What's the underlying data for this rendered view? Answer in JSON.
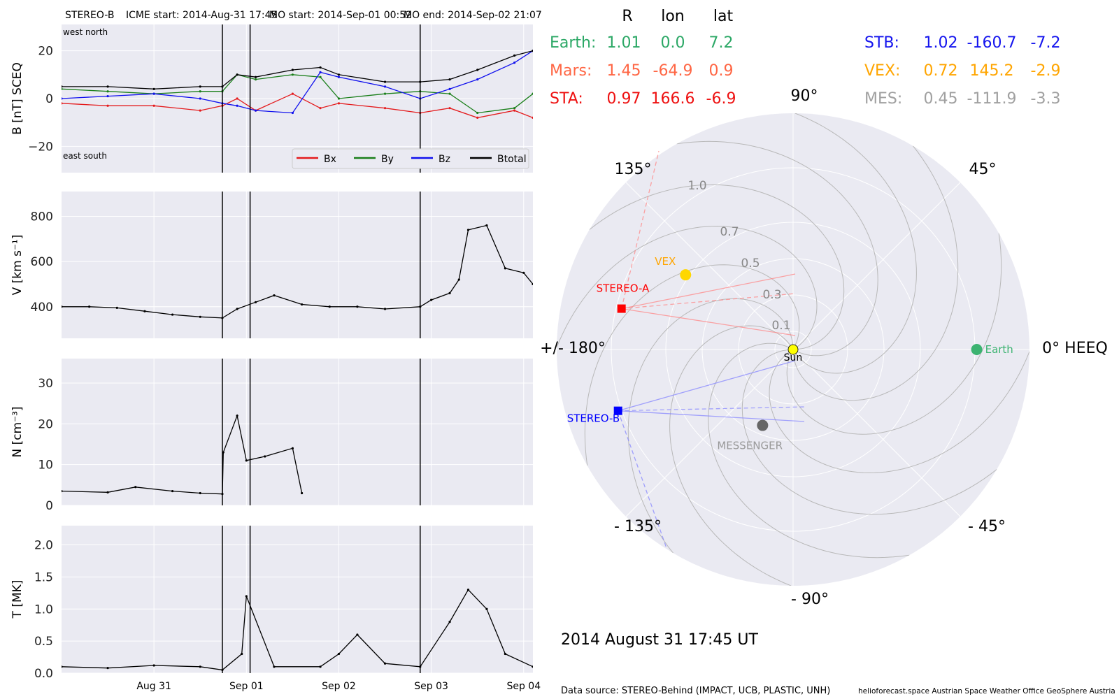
{
  "header": {
    "spacecraft": "STEREO-B",
    "icme_start": "ICME start: 2014-Aug-31 17:45",
    "mo_start": "MO start: 2014-Sep-01 00:52",
    "mo_end": "MO end: 2014-Sep-02 21:07"
  },
  "insitu": {
    "x_ticks": [
      "Aug 31",
      "Sep 01",
      "Sep 02",
      "Sep 03",
      "Sep 04"
    ],
    "x_range_days": [
      30.0,
      35.1
    ],
    "event_lines_days": [
      31.74,
      32.04,
      33.88
    ],
    "panels": [
      {
        "id": "B",
        "ylabel": "B [nT] SCEQ",
        "yticks": [
          "20",
          "0",
          "−20"
        ],
        "ylim": [
          -31,
          31
        ],
        "corner_labels": [
          "west    north",
          "east    south"
        ],
        "legend": [
          {
            "name": "Bx",
            "color": "#e41a1c"
          },
          {
            "name": "By",
            "color": "#1a7f1a"
          },
          {
            "name": "Bz",
            "color": "#1010ee"
          },
          {
            "name": "Btotal",
            "color": "#000000"
          }
        ]
      },
      {
        "id": "V",
        "ylabel": "V [km s⁻¹]",
        "yticks": [
          "800",
          "600",
          "400"
        ],
        "ylim": [
          260,
          910
        ]
      },
      {
        "id": "N",
        "ylabel": "N [cm⁻³]",
        "yticks": [
          "30",
          "20",
          "10",
          "0"
        ],
        "ylim": [
          0,
          36
        ]
      },
      {
        "id": "T",
        "ylabel": "T [MK]",
        "yticks": [
          "2.0",
          "1.5",
          "1.0",
          "0.5",
          "0.0"
        ],
        "ylim": [
          0,
          2.3
        ]
      }
    ]
  },
  "position_table": {
    "headers": [
      "R",
      "lon",
      "lat"
    ],
    "left": [
      {
        "name": "Earth:",
        "R": "1.01",
        "lon": "0.0",
        "lat": "7.2",
        "color": "#2ca866"
      },
      {
        "name": "Mars:",
        "R": "1.45",
        "lon": "-64.9",
        "lat": "0.9",
        "color": "#ff6644"
      },
      {
        "name": "STA:",
        "R": "0.97",
        "lon": "166.6",
        "lat": "-6.9",
        "color": "#ee1111"
      }
    ],
    "right": [
      {
        "name": "STB:",
        "R": "1.02",
        "lon": "-160.7",
        "lat": "-7.2",
        "color": "#1515ee"
      },
      {
        "name": "VEX:",
        "R": "0.72",
        "lon": "145.2",
        "lat": "-2.9",
        "color": "#ffa500"
      },
      {
        "name": "MES:",
        "R": "0.45",
        "lon": "-111.9",
        "lat": "-3.3",
        "color": "#a0a0a0"
      }
    ]
  },
  "polar": {
    "angle_labels": [
      {
        "deg": 90,
        "text": "90°"
      },
      {
        "deg": 45,
        "text": "45°"
      },
      {
        "deg": 0,
        "text": "0° HEEQ"
      },
      {
        "deg": -45,
        "text": "- 45°"
      },
      {
        "deg": -90,
        "text": "- 90°"
      },
      {
        "deg": -135,
        "text": "- 135°"
      },
      {
        "deg": 180,
        "text": "+/- 180°"
      },
      {
        "deg": 135,
        "text": "135°"
      }
    ],
    "radial_labels": [
      "0.1",
      "0.3",
      "0.5",
      "0.7",
      "1.0"
    ],
    "radial_values": [
      0.1,
      0.3,
      0.5,
      0.7,
      1.0
    ],
    "bodies": [
      {
        "name": "Sun",
        "label": "Sun",
        "r": 0.0,
        "lon": 0,
        "color": "#ffff00"
      },
      {
        "name": "Earth",
        "label": "Earth",
        "r": 1.01,
        "lon": 0.0,
        "color": "#3cb371"
      },
      {
        "name": "STEREO-A",
        "label": "STEREO-A",
        "r": 0.97,
        "lon": 166.6,
        "color": "#ff0000"
      },
      {
        "name": "STEREO-B",
        "label": "STEREO-B",
        "r": 1.02,
        "lon": -160.7,
        "color": "#0000ff"
      },
      {
        "name": "VEX",
        "label": "VEX",
        "r": 0.72,
        "lon": 145.2,
        "color": "#ffd700"
      },
      {
        "name": "MESSENGER",
        "label": "MESSENGER",
        "r": 0.45,
        "lon": -111.9,
        "color": "#666666"
      }
    ],
    "date_label": "2014 August 31  17:45 UT"
  },
  "footer": {
    "source": "Data source: STEREO-Behind (IMPACT, UCB, PLASTIC, UNH)",
    "credits": "helioforecast.space   Austrian Space Weather Office   GeoSphere Austria"
  },
  "chart_data": [
    {
      "type": "line",
      "title": "B [nT] SCEQ",
      "x_unit": "day of Aug 2014",
      "series": [
        {
          "name": "Bx",
          "x": [
            30.0,
            30.5,
            31.0,
            31.5,
            31.74,
            31.9,
            32.1,
            32.5,
            32.8,
            33.0,
            33.5,
            33.88,
            34.2,
            34.5,
            34.9,
            35.1
          ],
          "y": [
            -2,
            -3,
            -3,
            -5,
            -3,
            0,
            -5,
            2,
            -4,
            -2,
            -4,
            -6,
            -4,
            -8,
            -5,
            -8
          ]
        },
        {
          "name": "By",
          "x": [
            30.0,
            30.5,
            31.0,
            31.5,
            31.74,
            31.9,
            32.1,
            32.5,
            32.8,
            33.0,
            33.5,
            33.88,
            34.2,
            34.5,
            34.9,
            35.1
          ],
          "y": [
            4,
            3,
            2,
            3,
            3,
            10,
            8,
            10,
            9,
            0,
            2,
            3,
            2,
            -6,
            -4,
            2
          ]
        },
        {
          "name": "Bz",
          "x": [
            30.0,
            30.5,
            31.0,
            31.5,
            31.74,
            31.9,
            32.1,
            32.5,
            32.8,
            33.0,
            33.5,
            33.88,
            34.2,
            34.5,
            34.9,
            35.1
          ],
          "y": [
            0,
            1,
            2,
            0,
            -2,
            -3,
            -5,
            -6,
            11,
            9,
            5,
            0,
            4,
            8,
            15,
            20
          ]
        },
        {
          "name": "Btotal",
          "x": [
            30.0,
            30.5,
            31.0,
            31.5,
            31.74,
            31.9,
            32.1,
            32.5,
            32.8,
            33.0,
            33.5,
            33.88,
            34.2,
            34.5,
            34.9,
            35.1
          ],
          "y": [
            5,
            5,
            4,
            5,
            5,
            10,
            9,
            12,
            13,
            10,
            7,
            7,
            8,
            12,
            18,
            20
          ]
        }
      ],
      "ylim": [
        -31,
        31
      ]
    },
    {
      "type": "line",
      "title": "V [km s⁻¹]",
      "series": [
        {
          "name": "V",
          "x": [
            30.0,
            30.3,
            30.6,
            30.9,
            31.2,
            31.5,
            31.74,
            31.9,
            32.1,
            32.3,
            32.6,
            32.9,
            33.2,
            33.5,
            33.88,
            34.0,
            34.2,
            34.3,
            34.4,
            34.6,
            34.8,
            35.0,
            35.1
          ],
          "y": [
            400,
            400,
            395,
            380,
            365,
            355,
            350,
            390,
            420,
            450,
            410,
            400,
            400,
            390,
            400,
            430,
            460,
            520,
            740,
            760,
            570,
            550,
            500
          ]
        }
      ],
      "ylim": [
        260,
        910
      ]
    },
    {
      "type": "line",
      "title": "N [cm⁻³]",
      "series": [
        {
          "name": "N",
          "x": [
            30.0,
            30.5,
            30.8,
            31.2,
            31.5,
            31.74,
            31.75,
            31.9,
            32.0,
            32.2,
            32.5,
            32.6
          ],
          "y": [
            3.5,
            3.2,
            4.5,
            3.5,
            3.0,
            2.8,
            13,
            22,
            11,
            12,
            14,
            3
          ]
        }
      ],
      "ylim": [
        0,
        36
      ]
    },
    {
      "type": "line",
      "title": "T [MK]",
      "series": [
        {
          "name": "T",
          "x": [
            30.0,
            30.5,
            31.0,
            31.5,
            31.74,
            31.95,
            32.0,
            32.3,
            32.8,
            33.0,
            33.2,
            33.5,
            33.88,
            34.2,
            34.4,
            34.6,
            34.8,
            35.1
          ],
          "y": [
            0.1,
            0.08,
            0.12,
            0.1,
            0.05,
            0.3,
            1.2,
            0.1,
            0.1,
            0.3,
            0.6,
            0.15,
            0.1,
            0.8,
            1.3,
            1.0,
            0.3,
            0.1
          ]
        }
      ],
      "ylim": [
        0,
        2.3
      ]
    }
  ]
}
